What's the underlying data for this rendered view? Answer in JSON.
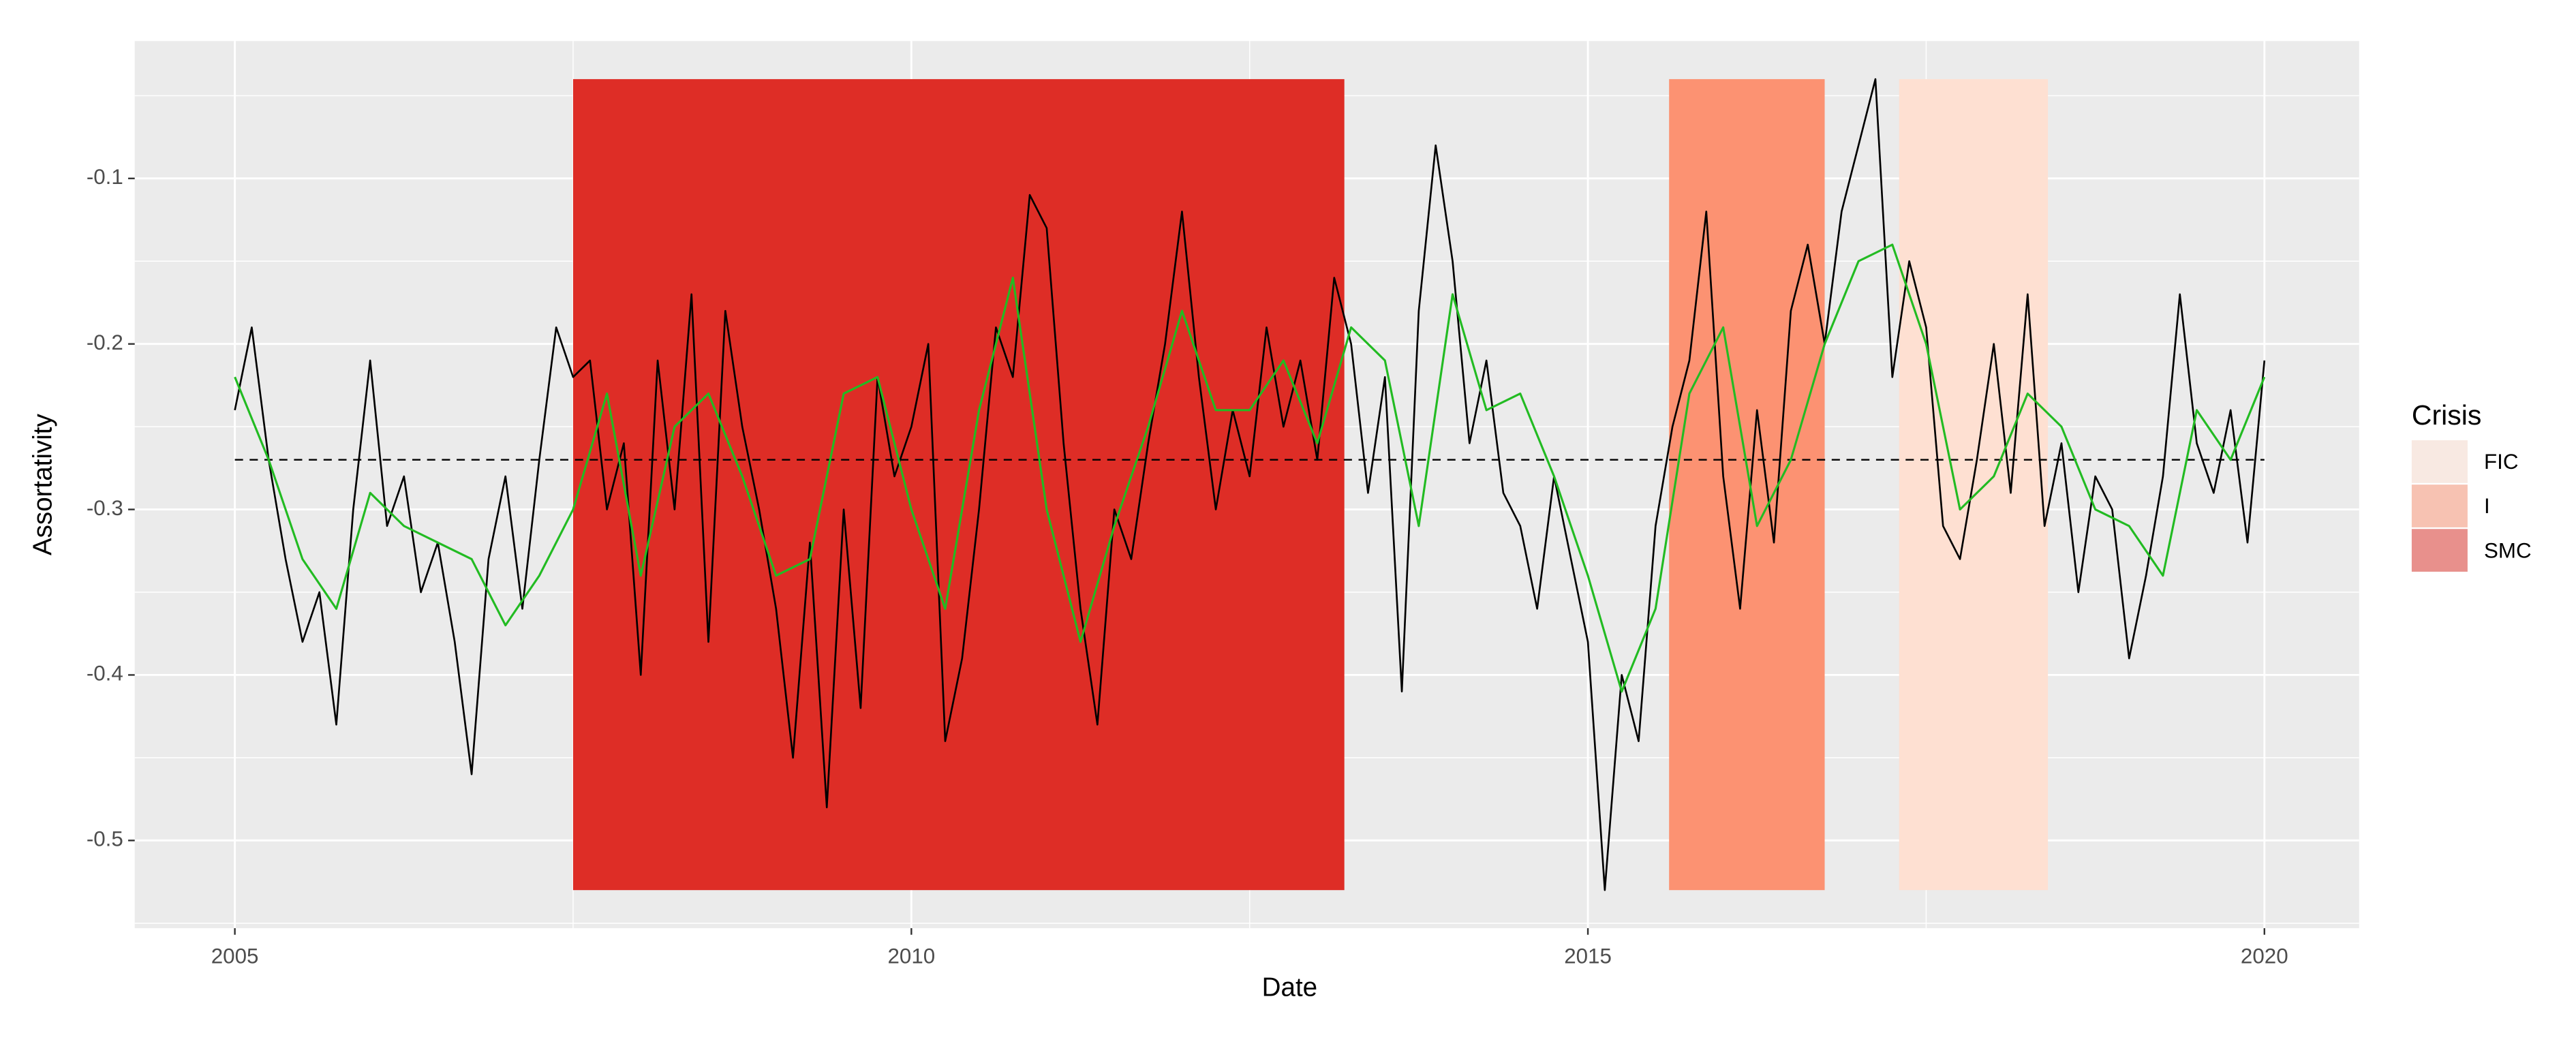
{
  "chart_data": {
    "type": "line",
    "xlabel": "Date",
    "ylabel": "Assortativity",
    "xlim": [
      2004.26,
      2020.7
    ],
    "ylim": [
      -0.553,
      -0.017
    ],
    "xticks": [
      2005,
      2010,
      2015,
      2020
    ],
    "yticks": [
      -0.5,
      -0.4,
      -0.3,
      -0.2,
      -0.1
    ],
    "grid": true,
    "hline": -0.27,
    "legend_title": "Crisis",
    "legend_position": "right",
    "legend_alpha": 0.5,
    "regions": [
      {
        "name": "FIC",
        "start": 2017.3,
        "end": 2018.4,
        "ymin": -0.53,
        "ymax": -0.04,
        "color": "#fee0d2"
      },
      {
        "name": "I",
        "start": 2015.6,
        "end": 2016.75,
        "ymin": -0.53,
        "ymax": -0.04,
        "color": "#fc9272"
      },
      {
        "name": "SMC",
        "start": 2007.5,
        "end": 2013.2,
        "ymin": -0.53,
        "ymax": -0.04,
        "color": "#de2d26"
      }
    ],
    "series": [
      {
        "color": "#000000",
        "x": [
          2005,
          2005.125,
          2005.25,
          2005.375,
          2005.5,
          2005.625,
          2005.75,
          2005.875,
          2006,
          2006.125,
          2006.25,
          2006.375,
          2006.5,
          2006.625,
          2006.75,
          2006.875,
          2007,
          2007.125,
          2007.25,
          2007.375,
          2007.5,
          2007.625,
          2007.75,
          2007.875,
          2008,
          2008.125,
          2008.25,
          2008.375,
          2008.5,
          2008.625,
          2008.75,
          2008.875,
          2009,
          2009.125,
          2009.25,
          2009.375,
          2009.5,
          2009.625,
          2009.75,
          2009.875,
          2010,
          2010.125,
          2010.25,
          2010.375,
          2010.5,
          2010.625,
          2010.75,
          2010.875,
          2011,
          2011.125,
          2011.25,
          2011.375,
          2011.5,
          2011.625,
          2011.75,
          2011.875,
          2012,
          2012.125,
          2012.25,
          2012.375,
          2012.5,
          2012.625,
          2012.75,
          2012.875,
          2013,
          2013.125,
          2013.25,
          2013.375,
          2013.5,
          2013.625,
          2013.75,
          2013.875,
          2014,
          2014.125,
          2014.25,
          2014.375,
          2014.5,
          2014.625,
          2014.75,
          2014.875,
          2015,
          2015.125,
          2015.25,
          2015.375,
          2015.5,
          2015.625,
          2015.75,
          2015.875,
          2016,
          2016.125,
          2016.25,
          2016.375,
          2016.5,
          2016.625,
          2016.75,
          2016.875,
          2017,
          2017.125,
          2017.25,
          2017.375,
          2017.5,
          2017.625,
          2017.75,
          2017.875,
          2018,
          2018.125,
          2018.25,
          2018.375,
          2018.5,
          2018.625,
          2018.75,
          2018.875,
          2019,
          2019.125,
          2019.25,
          2019.375,
          2019.5,
          2019.625,
          2019.75,
          2019.875,
          2020
        ],
        "values": [
          -0.24,
          -0.19,
          -0.27,
          -0.33,
          -0.38,
          -0.35,
          -0.43,
          -0.3,
          -0.21,
          -0.31,
          -0.28,
          -0.35,
          -0.32,
          -0.38,
          -0.46,
          -0.33,
          -0.28,
          -0.36,
          -0.27,
          -0.19,
          -0.22,
          -0.21,
          -0.3,
          -0.26,
          -0.4,
          -0.21,
          -0.3,
          -0.17,
          -0.38,
          -0.18,
          -0.25,
          -0.3,
          -0.36,
          -0.45,
          -0.32,
          -0.48,
          -0.3,
          -0.42,
          -0.22,
          -0.28,
          -0.25,
          -0.2,
          -0.44,
          -0.39,
          -0.3,
          -0.19,
          -0.22,
          -0.11,
          -0.13,
          -0.26,
          -0.36,
          -0.43,
          -0.3,
          -0.33,
          -0.26,
          -0.2,
          -0.12,
          -0.22,
          -0.3,
          -0.24,
          -0.28,
          -0.19,
          -0.25,
          -0.21,
          -0.27,
          -0.16,
          -0.2,
          -0.29,
          -0.22,
          -0.41,
          -0.18,
          -0.08,
          -0.15,
          -0.26,
          -0.21,
          -0.29,
          -0.31,
          -0.36,
          -0.28,
          -0.33,
          -0.38,
          -0.53,
          -0.4,
          -0.44,
          -0.31,
          -0.25,
          -0.21,
          -0.12,
          -0.28,
          -0.36,
          -0.24,
          -0.32,
          -0.18,
          -0.14,
          -0.2,
          -0.12,
          -0.08,
          -0.04,
          -0.22,
          -0.15,
          -0.19,
          -0.31,
          -0.33,
          -0.27,
          -0.2,
          -0.29,
          -0.17,
          -0.31,
          -0.26,
          -0.35,
          -0.28,
          -0.3,
          -0.39,
          -0.34,
          -0.28,
          -0.17,
          -0.26,
          -0.29,
          -0.24,
          -0.32,
          -0.21
        ]
      },
      {
        "color": "#22bb22",
        "x": [
          2005,
          2005.25,
          2005.5,
          2005.75,
          2006,
          2006.25,
          2006.5,
          2006.75,
          2007,
          2007.25,
          2007.5,
          2007.75,
          2008,
          2008.25,
          2008.5,
          2008.75,
          2009,
          2009.25,
          2009.5,
          2009.75,
          2010,
          2010.25,
          2010.5,
          2010.75,
          2011,
          2011.25,
          2011.5,
          2011.75,
          2012,
          2012.25,
          2012.5,
          2012.75,
          2013,
          2013.25,
          2013.5,
          2013.75,
          2014,
          2014.25,
          2014.5,
          2014.75,
          2015,
          2015.25,
          2015.5,
          2015.75,
          2016,
          2016.25,
          2016.5,
          2016.75,
          2017,
          2017.25,
          2017.5,
          2017.75,
          2018,
          2018.25,
          2018.5,
          2018.75,
          2019,
          2019.25,
          2019.5,
          2019.75,
          2020
        ],
        "values": [
          -0.22,
          -0.27,
          -0.33,
          -0.36,
          -0.29,
          -0.31,
          -0.32,
          -0.33,
          -0.37,
          -0.34,
          -0.3,
          -0.23,
          -0.34,
          -0.25,
          -0.23,
          -0.28,
          -0.34,
          -0.33,
          -0.23,
          -0.22,
          -0.3,
          -0.36,
          -0.24,
          -0.16,
          -0.3,
          -0.38,
          -0.31,
          -0.25,
          -0.18,
          -0.24,
          -0.24,
          -0.21,
          -0.26,
          -0.19,
          -0.21,
          -0.31,
          -0.17,
          -0.24,
          -0.23,
          -0.28,
          -0.34,
          -0.41,
          -0.36,
          -0.23,
          -0.19,
          -0.31,
          -0.27,
          -0.2,
          -0.15,
          -0.14,
          -0.2,
          -0.3,
          -0.28,
          -0.23,
          -0.25,
          -0.3,
          -0.31,
          -0.34,
          -0.24,
          -0.27,
          -0.22
        ]
      }
    ]
  }
}
